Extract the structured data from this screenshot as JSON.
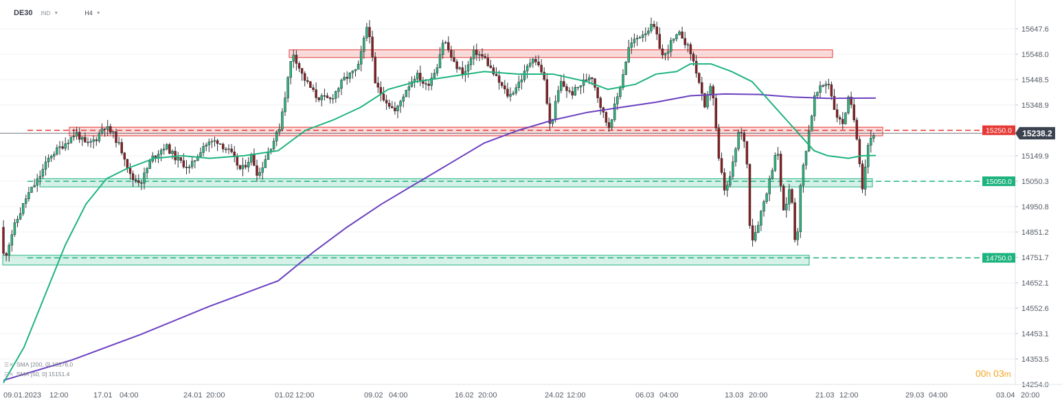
{
  "header": {
    "symbol": "DE30",
    "instrument_type": "IND",
    "timeframe": "H4"
  },
  "indicators": {
    "sma200": {
      "label": "SMA",
      "params": "[200, 0]",
      "value": "15376.0",
      "color": "#6a3fbf"
    },
    "sma50": {
      "label": "SMA",
      "params": "[50, 0]",
      "value": "15151.4",
      "color": "#1db37e"
    }
  },
  "timer": {
    "h": "00",
    "h_unit": "h",
    "m": "03",
    "m_unit": "m"
  },
  "chart_data": {
    "type": "candlestick",
    "instrument": "DE30",
    "timeframe": "H4",
    "current_price": 15238.2,
    "current_price_label": "15238.2",
    "ylim": [
      14254.0,
      15720.0
    ],
    "y_ticks": [
      "15647.6",
      "15548.0",
      "15448.5",
      "15348.9",
      "15149.9",
      "15050.3",
      "14950.8",
      "14851.2",
      "14751.7",
      "14652.1",
      "14552.6",
      "14453.1",
      "14353.5",
      "14254.0"
    ],
    "x_ticks": [
      "09.01.2023",
      "12:00",
      "17.01",
      "04:00",
      "24.01",
      "20:00",
      "01.02",
      "12:00",
      "09.02",
      "04:00",
      "16.02",
      "20:00",
      "24.02",
      "12:00",
      "06.03",
      "04:00",
      "13.03",
      "20:00",
      "21.03",
      "12:00",
      "29.03",
      "04:00",
      "03.04",
      "20:00"
    ],
    "levels": [
      {
        "value": 15250.0,
        "label": "15250.0",
        "kind": "resistance",
        "color": "#e53935"
      },
      {
        "value": 15050.0,
        "label": "15050.0",
        "kind": "support",
        "color": "#1db37e"
      },
      {
        "value": 14750.0,
        "label": "14750.0",
        "kind": "support",
        "color": "#1db37e"
      }
    ],
    "zones": [
      {
        "kind": "resistance",
        "from_label": "01.02",
        "to_label": "21.03",
        "low": 15535,
        "high": 15565
      },
      {
        "kind": "resistance",
        "from_label": "09.01.2023",
        "to_label": "21.03",
        "low": 15228,
        "high": 15262
      },
      {
        "kind": "support",
        "from_label": "09.01.2023",
        "to_label": "21.03",
        "low": 15028,
        "high": 15060
      },
      {
        "kind": "support",
        "from_label": "09.01.2023",
        "to_label": "21.03",
        "low": 14722,
        "high": 14760
      }
    ],
    "close_path": [
      [
        0,
        14870
      ],
      [
        5,
        14740
      ],
      [
        18,
        14860
      ],
      [
        38,
        14990
      ],
      [
        55,
        15060
      ],
      [
        72,
        15150
      ],
      [
        90,
        15190
      ],
      [
        110,
        15240
      ],
      [
        125,
        15190
      ],
      [
        140,
        15220
      ],
      [
        150,
        15270
      ],
      [
        165,
        15230
      ],
      [
        180,
        15150
      ],
      [
        190,
        15060
      ],
      [
        205,
        15050
      ],
      [
        220,
        15140
      ],
      [
        240,
        15190
      ],
      [
        255,
        15140
      ],
      [
        275,
        15100
      ],
      [
        295,
        15190
      ],
      [
        315,
        15210
      ],
      [
        335,
        15160
      ],
      [
        350,
        15090
      ],
      [
        365,
        15150
      ],
      [
        375,
        15070
      ],
      [
        390,
        15170
      ],
      [
        405,
        15250
      ],
      [
        415,
        15400
      ],
      [
        425,
        15560
      ],
      [
        440,
        15460
      ],
      [
        460,
        15380
      ],
      [
        480,
        15370
      ],
      [
        500,
        15450
      ],
      [
        520,
        15490
      ],
      [
        535,
        15680
      ],
      [
        545,
        15430
      ],
      [
        560,
        15370
      ],
      [
        575,
        15320
      ],
      [
        590,
        15410
      ],
      [
        605,
        15470
      ],
      [
        620,
        15420
      ],
      [
        635,
        15500
      ],
      [
        645,
        15610
      ],
      [
        660,
        15510
      ],
      [
        675,
        15470
      ],
      [
        690,
        15560
      ],
      [
        705,
        15530
      ],
      [
        720,
        15460
      ],
      [
        740,
        15380
      ],
      [
        760,
        15460
      ],
      [
        775,
        15540
      ],
      [
        790,
        15470
      ],
      [
        800,
        15260
      ],
      [
        815,
        15440
      ],
      [
        830,
        15390
      ],
      [
        845,
        15430
      ],
      [
        860,
        15470
      ],
      [
        875,
        15330
      ],
      [
        885,
        15260
      ],
      [
        900,
        15400
      ],
      [
        915,
        15580
      ],
      [
        930,
        15620
      ],
      [
        950,
        15660
      ],
      [
        965,
        15530
      ],
      [
        975,
        15590
      ],
      [
        990,
        15630
      ],
      [
        1005,
        15550
      ],
      [
        1015,
        15460
      ],
      [
        1025,
        15330
      ],
      [
        1035,
        15450
      ],
      [
        1045,
        15140
      ],
      [
        1055,
        15000
      ],
      [
        1065,
        15100
      ],
      [
        1075,
        15250
      ],
      [
        1085,
        15200
      ],
      [
        1092,
        14810
      ],
      [
        1100,
        14860
      ],
      [
        1110,
        14960
      ],
      [
        1120,
        15060
      ],
      [
        1130,
        15190
      ],
      [
        1140,
        14920
      ],
      [
        1150,
        15040
      ],
      [
        1158,
        14770
      ],
      [
        1165,
        15050
      ],
      [
        1175,
        15220
      ],
      [
        1185,
        15380
      ],
      [
        1195,
        15420
      ],
      [
        1205,
        15440
      ],
      [
        1215,
        15320
      ],
      [
        1225,
        15270
      ],
      [
        1235,
        15380
      ],
      [
        1245,
        15260
      ],
      [
        1255,
        15020
      ],
      [
        1262,
        15190
      ],
      [
        1270,
        15238
      ]
    ],
    "sma200_path": [
      [
        0,
        14270
      ],
      [
        100,
        14350
      ],
      [
        200,
        14450
      ],
      [
        300,
        14560
      ],
      [
        350,
        14610
      ],
      [
        400,
        14660
      ],
      [
        450,
        14770
      ],
      [
        500,
        14870
      ],
      [
        550,
        14960
      ],
      [
        600,
        15040
      ],
      [
        650,
        15120
      ],
      [
        700,
        15200
      ],
      [
        750,
        15250
      ],
      [
        800,
        15290
      ],
      [
        850,
        15320
      ],
      [
        900,
        15340
      ],
      [
        950,
        15360
      ],
      [
        1000,
        15385
      ],
      [
        1050,
        15392
      ],
      [
        1100,
        15390
      ],
      [
        1150,
        15380
      ],
      [
        1200,
        15375
      ],
      [
        1270,
        15376
      ]
    ],
    "sma50_path": [
      [
        0,
        14260
      ],
      [
        30,
        14400
      ],
      [
        60,
        14600
      ],
      [
        90,
        14800
      ],
      [
        120,
        14960
      ],
      [
        150,
        15060
      ],
      [
        180,
        15100
      ],
      [
        220,
        15140
      ],
      [
        260,
        15150
      ],
      [
        300,
        15140
      ],
      [
        350,
        15150
      ],
      [
        400,
        15170
      ],
      [
        440,
        15250
      ],
      [
        480,
        15290
      ],
      [
        520,
        15340
      ],
      [
        560,
        15410
      ],
      [
        600,
        15440
      ],
      [
        650,
        15460
      ],
      [
        700,
        15480
      ],
      [
        750,
        15470
      ],
      [
        800,
        15470
      ],
      [
        850,
        15440
      ],
      [
        880,
        15410
      ],
      [
        920,
        15430
      ],
      [
        950,
        15470
      ],
      [
        980,
        15480
      ],
      [
        1000,
        15510
      ],
      [
        1030,
        15510
      ],
      [
        1060,
        15480
      ],
      [
        1090,
        15440
      ],
      [
        1110,
        15380
      ],
      [
        1140,
        15290
      ],
      [
        1160,
        15230
      ],
      [
        1180,
        15170
      ],
      [
        1200,
        15150
      ],
      [
        1230,
        15140
      ],
      [
        1250,
        15150
      ],
      [
        1270,
        15151
      ]
    ]
  }
}
